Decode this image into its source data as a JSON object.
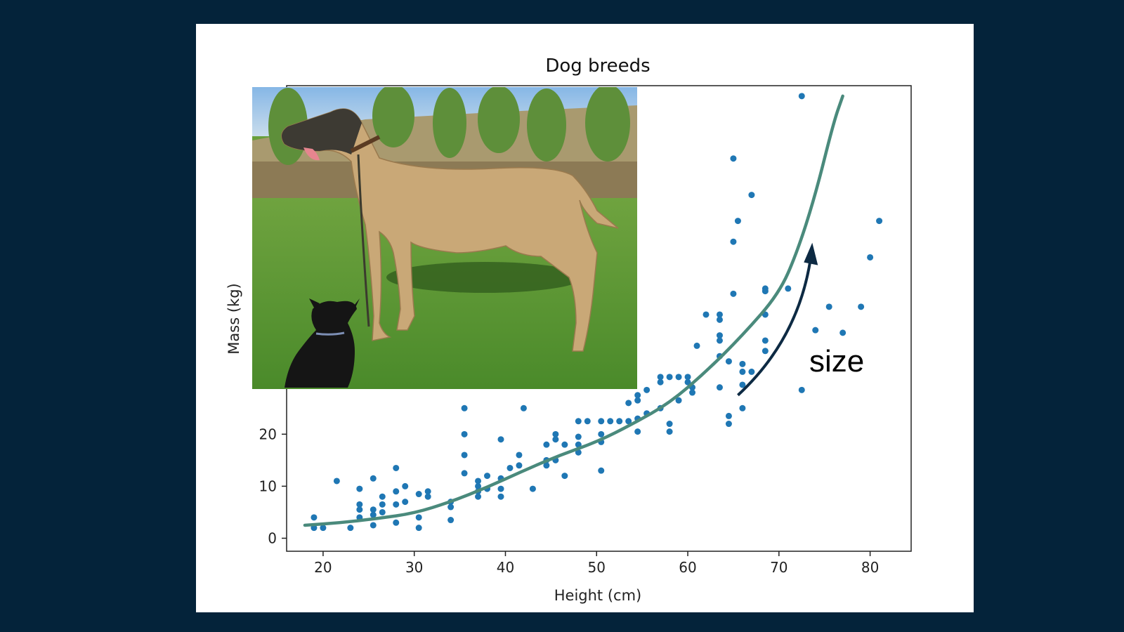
{
  "colors": {
    "background": "#04233a",
    "panel": "#ffffff",
    "points": "#1f77b4",
    "trend": "#4a8a7c",
    "arrow": "#0d2a43"
  },
  "annotation": {
    "label": "size",
    "icon": "arrow-up-right-icon"
  },
  "photo": {
    "description_icon": "dog-photo-icon"
  },
  "chart_data": {
    "type": "scatter",
    "title": "Dog breeds",
    "xlabel": "Height (cm)",
    "ylabel": "Mass (kg)",
    "xlim": [
      16,
      84.5
    ],
    "ylim": [
      -2.5,
      87
    ],
    "xticks": [
      20,
      30,
      40,
      50,
      60,
      70,
      80
    ],
    "yticks": [
      0,
      10,
      20
    ],
    "grid": false,
    "points": [
      [
        19,
        4
      ],
      [
        19,
        2
      ],
      [
        20,
        2
      ],
      [
        21.5,
        11
      ],
      [
        23,
        2
      ],
      [
        24,
        9.5
      ],
      [
        24,
        6.5
      ],
      [
        24,
        5.5
      ],
      [
        24,
        4
      ],
      [
        25.5,
        11.5
      ],
      [
        25.5,
        5.5
      ],
      [
        25.5,
        4.5
      ],
      [
        25.5,
        2.5
      ],
      [
        26.5,
        8
      ],
      [
        26.5,
        6.5
      ],
      [
        26.5,
        5
      ],
      [
        28,
        13.5
      ],
      [
        28,
        9
      ],
      [
        28,
        6.5
      ],
      [
        28,
        3
      ],
      [
        29,
        10
      ],
      [
        29,
        7
      ],
      [
        30.5,
        8.5
      ],
      [
        30.5,
        4
      ],
      [
        30.5,
        2
      ],
      [
        31.5,
        9
      ],
      [
        31.5,
        8
      ],
      [
        34,
        7
      ],
      [
        34,
        6
      ],
      [
        34,
        3.5
      ],
      [
        35.5,
        25
      ],
      [
        35.5,
        20
      ],
      [
        35.5,
        16
      ],
      [
        35.5,
        12.5
      ],
      [
        37,
        11
      ],
      [
        37,
        10
      ],
      [
        37,
        9
      ],
      [
        37,
        8
      ],
      [
        38,
        12
      ],
      [
        38,
        9.5
      ],
      [
        39.5,
        19
      ],
      [
        39.5,
        11.5
      ],
      [
        39.5,
        9.5
      ],
      [
        39.5,
        8
      ],
      [
        40.5,
        13.5
      ],
      [
        41.5,
        16
      ],
      [
        41.5,
        14
      ],
      [
        42,
        25
      ],
      [
        43,
        9.5
      ],
      [
        44.5,
        18
      ],
      [
        44.5,
        15
      ],
      [
        44.5,
        14
      ],
      [
        45.5,
        20
      ],
      [
        45.5,
        19
      ],
      [
        45.5,
        15
      ],
      [
        46.5,
        18
      ],
      [
        46.5,
        12
      ],
      [
        48,
        22.5
      ],
      [
        48,
        19.5
      ],
      [
        48,
        18
      ],
      [
        48,
        16.5
      ],
      [
        49,
        22.5
      ],
      [
        50.5,
        22.5
      ],
      [
        50.5,
        20
      ],
      [
        50.5,
        18.5
      ],
      [
        50.5,
        13
      ],
      [
        51.5,
        22.5
      ],
      [
        52.5,
        22.5
      ],
      [
        53.5,
        26
      ],
      [
        53.5,
        22.5
      ],
      [
        54.5,
        27.5
      ],
      [
        54.5,
        26.5
      ],
      [
        54.5,
        23
      ],
      [
        54.5,
        20.5
      ],
      [
        55.5,
        28.5
      ],
      [
        55.5,
        24
      ],
      [
        57,
        31
      ],
      [
        57,
        30
      ],
      [
        57,
        25
      ],
      [
        58,
        31
      ],
      [
        58,
        22
      ],
      [
        58,
        20.5
      ],
      [
        59,
        31
      ],
      [
        59,
        26.5
      ],
      [
        60,
        31
      ],
      [
        60,
        30
      ],
      [
        60.5,
        29
      ],
      [
        60.5,
        28
      ],
      [
        61,
        37
      ],
      [
        62,
        43
      ],
      [
        63.5,
        43
      ],
      [
        63.5,
        42
      ],
      [
        63.5,
        39
      ],
      [
        63.5,
        38
      ],
      [
        63.5,
        35
      ],
      [
        63.5,
        29
      ],
      [
        64.5,
        34
      ],
      [
        64.5,
        23.5
      ],
      [
        64.5,
        22
      ],
      [
        65,
        47
      ],
      [
        65,
        57
      ],
      [
        65,
        73
      ],
      [
        65.5,
        61
      ],
      [
        66,
        33.5
      ],
      [
        66,
        32
      ],
      [
        66,
        29.5
      ],
      [
        66,
        25
      ],
      [
        67,
        66
      ],
      [
        67,
        32
      ],
      [
        68.5,
        36
      ],
      [
        68.5,
        38
      ],
      [
        68.5,
        43
      ],
      [
        68.5,
        47.5
      ],
      [
        68.5,
        48
      ],
      [
        71,
        48
      ],
      [
        72.5,
        28.5
      ],
      [
        72.5,
        85
      ],
      [
        74,
        40
      ],
      [
        75.5,
        44.5
      ],
      [
        77,
        39.5
      ],
      [
        79,
        44.5
      ],
      [
        80,
        54
      ],
      [
        81,
        61
      ]
    ],
    "trend": [
      [
        18,
        2.5
      ],
      [
        22,
        3
      ],
      [
        26,
        3.8
      ],
      [
        30,
        4.8
      ],
      [
        34,
        7
      ],
      [
        38,
        9.8
      ],
      [
        42,
        13
      ],
      [
        46,
        16
      ],
      [
        50,
        18.5
      ],
      [
        54,
        22
      ],
      [
        58,
        26
      ],
      [
        62,
        32
      ],
      [
        66,
        39
      ],
      [
        70,
        47
      ],
      [
        72,
        55
      ],
      [
        74,
        66
      ],
      [
        76,
        80
      ],
      [
        77,
        85
      ]
    ],
    "arrow_annotation": {
      "from": [
        65.5,
        27.5
      ],
      "to": [
        73.5,
        56
      ]
    }
  }
}
